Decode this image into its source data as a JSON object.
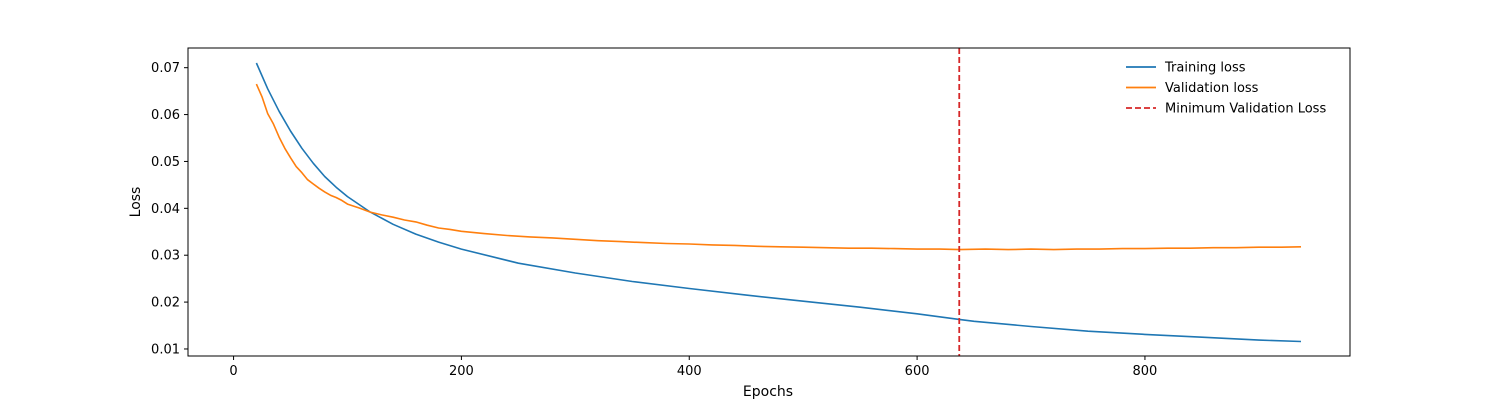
{
  "chart_data": {
    "type": "line",
    "xlabel": "Epochs",
    "ylabel": "Loss",
    "xlim": [
      -40,
      980
    ],
    "ylim": [
      0.0085,
      0.0742
    ],
    "xticks": [
      0,
      200,
      400,
      600,
      800
    ],
    "yticks": [
      0.01,
      0.02,
      0.03,
      0.04,
      0.05,
      0.06,
      0.07
    ],
    "grid": false,
    "legend_position": "top-right",
    "legend_frame": false,
    "series": [
      {
        "name": "Training loss",
        "color": "#1f77b4",
        "style": "solid",
        "x": [
          20,
          30,
          40,
          50,
          60,
          70,
          80,
          90,
          100,
          120,
          140,
          160,
          180,
          200,
          250,
          300,
          350,
          400,
          450,
          500,
          550,
          600,
          637,
          650,
          700,
          750,
          800,
          850,
          900,
          937
        ],
        "y": [
          0.071,
          0.0655,
          0.0607,
          0.0565,
          0.0528,
          0.0496,
          0.0468,
          0.0445,
          0.0425,
          0.0392,
          0.0366,
          0.0345,
          0.0328,
          0.0313,
          0.0283,
          0.0262,
          0.0244,
          0.0229,
          0.0215,
          0.0202,
          0.0189,
          0.0175,
          0.0163,
          0.0159,
          0.0148,
          0.0138,
          0.0131,
          0.0125,
          0.0119,
          0.0116
        ]
      },
      {
        "name": "Validation loss",
        "color": "#ff7f0e",
        "style": "solid",
        "x": [
          20,
          25,
          30,
          35,
          40,
          45,
          50,
          55,
          60,
          65,
          70,
          75,
          80,
          85,
          90,
          95,
          100,
          110,
          120,
          130,
          140,
          150,
          160,
          170,
          180,
          190,
          200,
          220,
          240,
          260,
          280,
          300,
          320,
          340,
          360,
          380,
          400,
          420,
          440,
          460,
          480,
          500,
          520,
          540,
          560,
          580,
          600,
          620,
          637,
          660,
          680,
          700,
          720,
          740,
          760,
          780,
          800,
          820,
          840,
          860,
          880,
          900,
          920,
          937
        ],
        "y": [
          0.0665,
          0.0638,
          0.0602,
          0.058,
          0.0552,
          0.0528,
          0.0508,
          0.0489,
          0.0476,
          0.0461,
          0.0452,
          0.0443,
          0.0435,
          0.0428,
          0.0423,
          0.0417,
          0.0409,
          0.0401,
          0.0392,
          0.0386,
          0.0381,
          0.0375,
          0.0371,
          0.0364,
          0.0358,
          0.0355,
          0.0351,
          0.0346,
          0.0342,
          0.0339,
          0.0337,
          0.0334,
          0.0331,
          0.0329,
          0.0327,
          0.0325,
          0.0324,
          0.0322,
          0.0321,
          0.0319,
          0.0318,
          0.0317,
          0.0316,
          0.0315,
          0.0315,
          0.0314,
          0.0313,
          0.0313,
          0.0312,
          0.0313,
          0.0312,
          0.0313,
          0.0312,
          0.0313,
          0.0313,
          0.0314,
          0.0314,
          0.0315,
          0.0315,
          0.0316,
          0.0316,
          0.0317,
          0.0317,
          0.0318
        ]
      }
    ],
    "vlines": [
      {
        "name": "Minimum Validation Loss",
        "x": 637,
        "color": "#d62728",
        "style": "dashed"
      }
    ]
  }
}
